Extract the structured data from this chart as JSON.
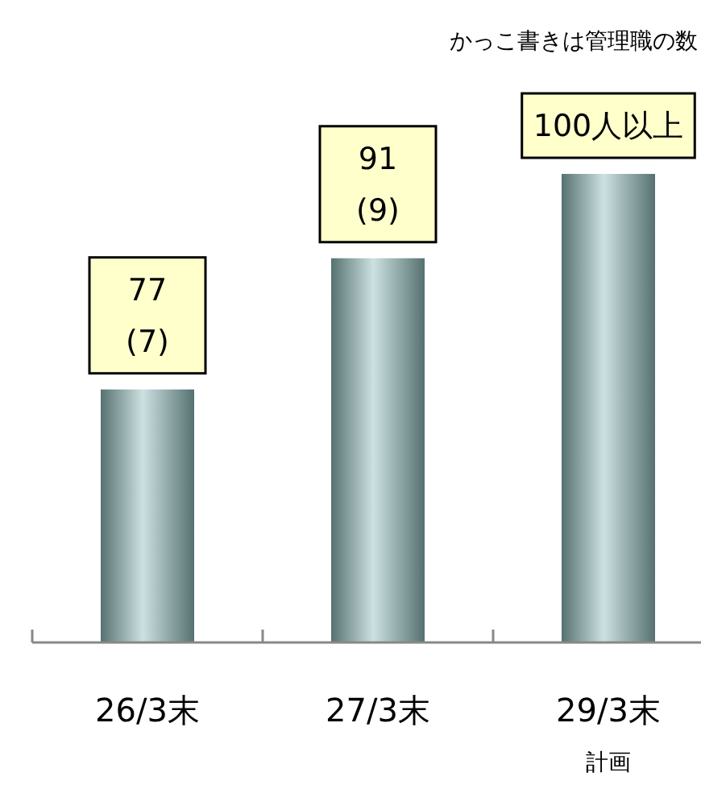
{
  "chart_data": {
    "type": "bar",
    "title": "かっこ書きは管理職の数",
    "categories": [
      "26/3末",
      "27/3末",
      "29/3末"
    ],
    "values": [
      77,
      91,
      100
    ],
    "value_labels": [
      "77\n(7)",
      "91\n(9)",
      "100人以上"
    ],
    "color": "#8fbcbc",
    "ylim": [
      50,
      100
    ],
    "annotations": [
      "計画"
    ]
  }
}
